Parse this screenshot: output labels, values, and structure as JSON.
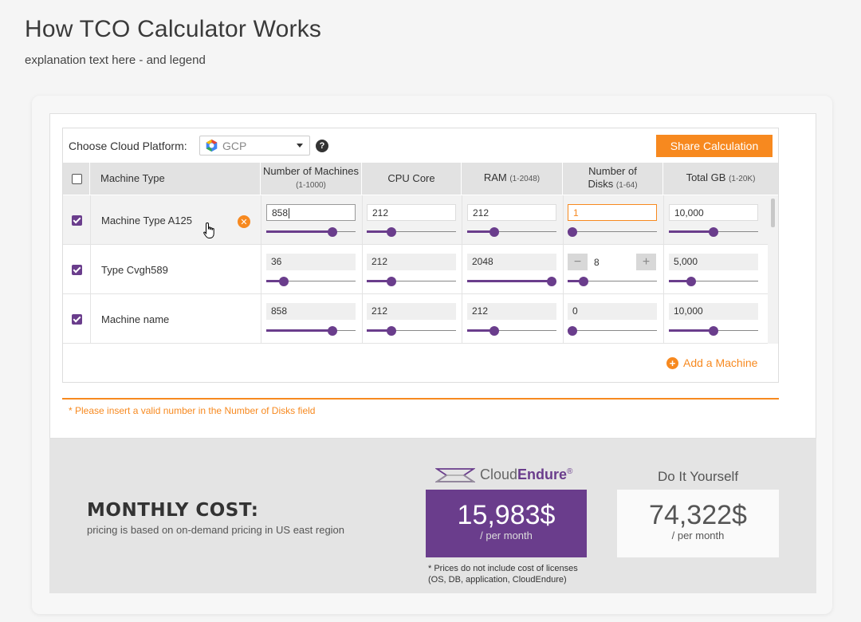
{
  "page": {
    "title": "How TCO Calculator Works",
    "subtitle": "explanation text here - and legend"
  },
  "platform": {
    "label": "Choose Cloud Platform:",
    "value": "GCP",
    "help": "?"
  },
  "share_label": "Share Calculation",
  "table": {
    "headers": [
      {
        "label": "Machine Type",
        "hint": ""
      },
      {
        "label": "Number of Machines",
        "hint": "(1-1000)"
      },
      {
        "label": "CPU Core",
        "hint": ""
      },
      {
        "label": "RAM",
        "hint": "(1-2048)"
      },
      {
        "label": "Number of Disks",
        "hint": "(1-64)"
      },
      {
        "label": "Total GB",
        "hint": "(1-20K)"
      }
    ],
    "rows": [
      {
        "name": "Machine Type A125",
        "checked": true,
        "machines": "858",
        "machines_level": 0.74,
        "cpu": "212",
        "cpu_level": 0.28,
        "ram": "212",
        "ram_level": 0.3,
        "disks": "1",
        "disks_level": 0.05,
        "total_gb": "10,000",
        "total_gb_level": 0.5
      },
      {
        "name": "Type Cvgh589",
        "checked": true,
        "machines": "36",
        "machines_level": 0.2,
        "cpu": "212",
        "cpu_level": 0.28,
        "ram": "2048",
        "ram_level": 0.95,
        "disks": "8",
        "disks_level": 0.18,
        "total_gb": "5,000",
        "total_gb_level": 0.25
      },
      {
        "name": "Machine name",
        "checked": true,
        "machines": "858",
        "machines_level": 0.74,
        "cpu": "212",
        "cpu_level": 0.28,
        "ram": "212",
        "ram_level": 0.3,
        "disks": "0",
        "disks_level": 0.05,
        "total_gb": "10,000",
        "total_gb_level": 0.5
      }
    ],
    "stepper": {
      "minus": "−",
      "plus": "+"
    },
    "remove": "✕"
  },
  "add_machine_label": "Add a Machine",
  "add_icon": "+",
  "error_message": "* Please insert a valid number in the Number of Disks field",
  "cost": {
    "title": "MONTHLY COST:",
    "subtitle": "pricing is based on on-demand pricing in US east region",
    "cloudendure": {
      "brand_a": "Cloud",
      "brand_b": "Endure",
      "mark": "®",
      "price": "15,983$",
      "per": "/ per month"
    },
    "diy": {
      "title": "Do It Yourself",
      "price": "74,322$",
      "per": "/ per month"
    },
    "footnote_1": "* Prices do not include cost of licenses",
    "footnote_2": "(OS, DB, application, CloudEndure)"
  },
  "colors": {
    "accent": "#f7891f",
    "brand": "#6a3d8c"
  }
}
